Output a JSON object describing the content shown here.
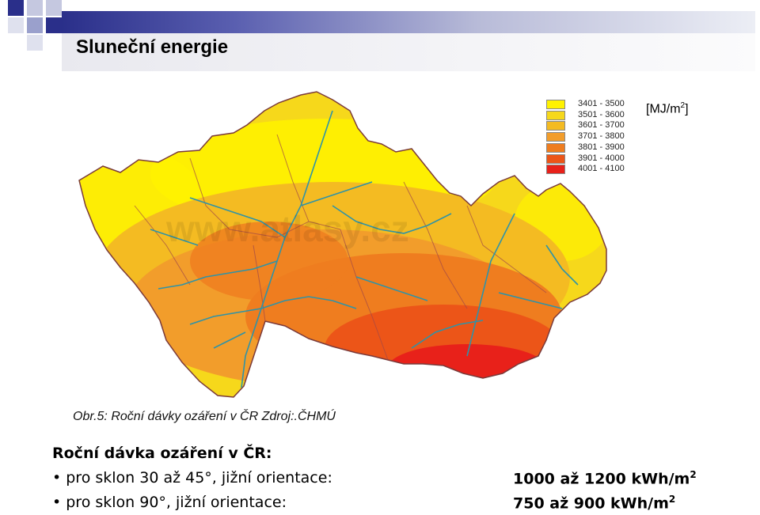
{
  "slide": {
    "title": "Sluneční energie",
    "colors": {
      "accent_dark": "#2a2f8a",
      "accent_light": "#b8bbd8"
    }
  },
  "map": {
    "region": "ČR",
    "river_color": "#2e93a8",
    "border_color": "#7a3a3a",
    "watermark": "www.atlasy.cz"
  },
  "legend": {
    "unit_base": "[MJ/m",
    "unit_exp": "2",
    "unit_close": "]",
    "items": [
      {
        "label": "3401 - 3500",
        "color": "#fff200"
      },
      {
        "label": "3501 - 3600",
        "color": "#f6d81b"
      },
      {
        "label": "3601 - 3700",
        "color": "#f4bb22"
      },
      {
        "label": "3701 - 3800",
        "color": "#f29d2b"
      },
      {
        "label": "3801 - 3900",
        "color": "#ef7d1f"
      },
      {
        "label": "3901 - 4000",
        "color": "#ec5518"
      },
      {
        "label": "4001 - 4100",
        "color": "#e8211a"
      }
    ]
  },
  "caption": "Obr.5: Roční dávky ozáření v ČR  Zdroj:.ČHMÚ",
  "summary": {
    "heading": "Roční dávka ozáření v ČR:",
    "lines": [
      {
        "label": "• pro sklon 30 až 45°, jižní orientace:",
        "value": "1000 až 1200 kWh/m",
        "exp": "2"
      },
      {
        "label": "• pro sklon 90°, jižní orientace:",
        "value": "750 až 900 kWh/m",
        "exp": "2"
      }
    ]
  }
}
